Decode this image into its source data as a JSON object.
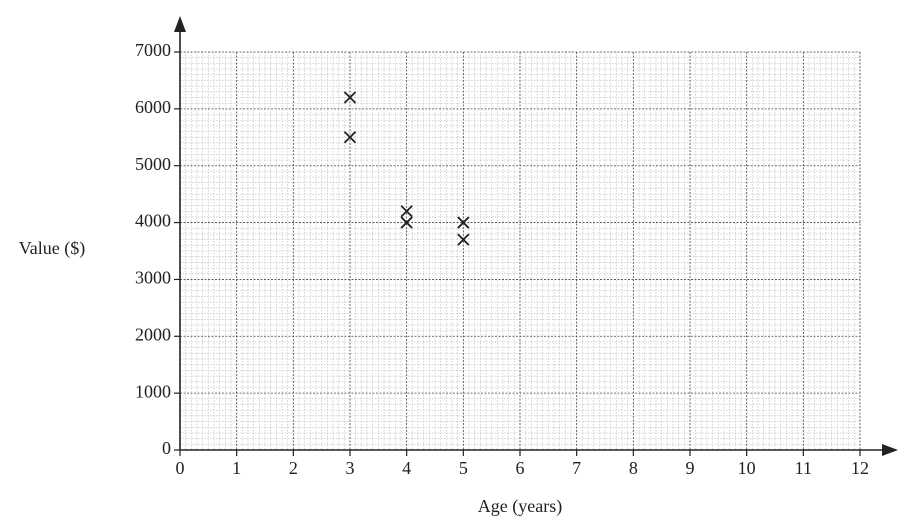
{
  "chart_data": {
    "type": "scatter",
    "xlabel": "Age (years)",
    "ylabel": "Value ($)",
    "x": [
      3,
      3,
      4,
      4,
      5,
      5
    ],
    "values": [
      6200,
      5500,
      4200,
      4000,
      4000,
      3700
    ],
    "marker": "x",
    "color": "#222222",
    "xlim": [
      0,
      12
    ],
    "xticks": [
      0,
      1,
      2,
      3,
      4,
      5,
      6,
      7,
      8,
      9,
      10,
      11,
      12
    ],
    "ylim": [
      0,
      7000
    ],
    "yticks": [
      0,
      1000,
      2000,
      3000,
      4000,
      5000,
      6000,
      7000
    ],
    "grid": true
  }
}
